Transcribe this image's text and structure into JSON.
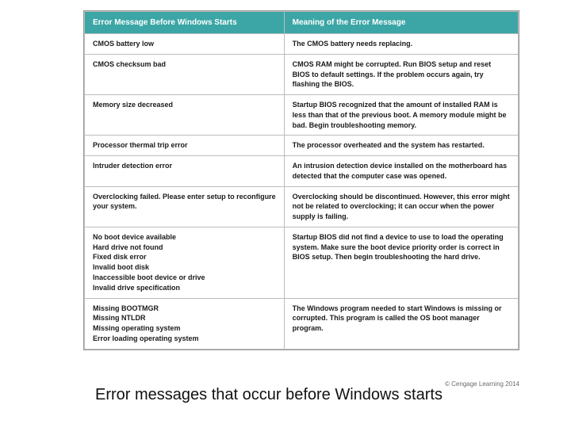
{
  "table": {
    "header_bg": "#3ca6a6",
    "header_fg": "#ffffff",
    "cell_bg": "#ffffff",
    "cell_fg": "#1a1a1a",
    "border_color": "#bcbcbc",
    "headers": {
      "col1": "Error Message Before Windows Starts",
      "col2": "Meaning of the Error Message"
    },
    "rows": [
      {
        "err": "CMOS battery low",
        "meaning": "The CMOS battery needs replacing."
      },
      {
        "err": "CMOS checksum bad",
        "meaning": "CMOS RAM might be corrupted. Run BIOS setup and reset BIOS to default settings. If the problem occurs again, try flashing the BIOS."
      },
      {
        "err": "Memory size decreased",
        "meaning": "Startup BIOS recognized that the amount of installed RAM is less than that of the previous boot. A memory module might be bad. Begin troubleshooting memory."
      },
      {
        "err": "Processor thermal trip error",
        "meaning": "The processor overheated and the system has restarted."
      },
      {
        "err": "Intruder detection error",
        "meaning": "An intrusion detection device installed on the motherboard has detected that the computer case was opened."
      },
      {
        "err": "Overclocking failed. Please enter setup to reconfigure your system.",
        "meaning": "Overclocking should be discontinued. However, this error might not be related to overclocking; it can occur when the power supply is failing."
      },
      {
        "err_lines": [
          "No boot device available",
          "Hard drive not found",
          "Fixed disk error",
          "Invalid boot disk",
          "Inaccessible boot device or drive",
          "Invalid drive specification"
        ],
        "meaning": "Startup BIOS did not find a device to use to load the operating system. Make sure the boot device priority order is correct in BIOS setup. Then begin troubleshooting the hard drive."
      },
      {
        "err_lines": [
          "Missing BOOTMGR",
          "Missing NTLDR",
          "Missing operating system",
          "Error loading operating system"
        ],
        "meaning": "The Windows program needed to start Windows is missing or corrupted. This program is called the OS boot manager program."
      }
    ]
  },
  "credit": "© Cengage Learning 2014",
  "caption": "Error messages that occur before Windows starts"
}
